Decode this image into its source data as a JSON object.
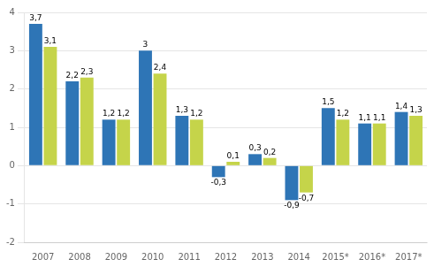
{
  "chart_data": {
    "type": "bar",
    "categories": [
      "2007",
      "2008",
      "2009",
      "2010",
      "2011",
      "2012",
      "2013",
      "2014",
      "2015*",
      "2016*",
      "2017*"
    ],
    "series": [
      {
        "color": "#2E75B6",
        "values": [
          3.7,
          2.2,
          1.2,
          3.0,
          1.3,
          -0.3,
          0.3,
          -0.9,
          1.5,
          1.1,
          1.4
        ],
        "value_labels": [
          "3,7",
          "2,2",
          "1,2",
          "3",
          "1,3",
          "-0,3",
          "0,3",
          "-0,9",
          "1,5",
          "1,1",
          "1,4"
        ]
      },
      {
        "color": "#C5D44A",
        "values": [
          3.1,
          2.3,
          1.2,
          2.4,
          1.2,
          0.1,
          0.2,
          -0.7,
          1.2,
          1.1,
          1.3
        ],
        "value_labels": [
          "3,1",
          "2,3",
          "1,2",
          "2,4",
          "1,2",
          "0,1",
          "0,2",
          "-0,7",
          "1,2",
          "1,1",
          "1,3"
        ]
      }
    ],
    "ylim": [
      -2,
      4
    ],
    "yticks": [
      -2,
      -1,
      0,
      1,
      2,
      3,
      4
    ],
    "grid": true,
    "data_labels": true
  }
}
